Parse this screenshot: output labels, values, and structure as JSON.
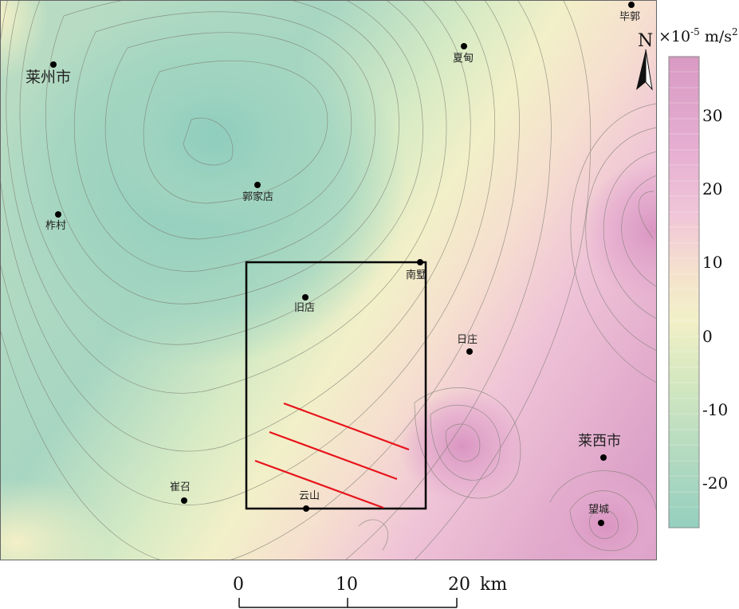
{
  "places": [
    {
      "id": "laizhou",
      "name": "莱州市",
      "major": true
    },
    {
      "id": "zhacun",
      "name": "柞村",
      "major": false
    },
    {
      "id": "guojiadian",
      "name": "郭家店",
      "major": false
    },
    {
      "id": "xiahe",
      "name": "夏甸",
      "major": false
    },
    {
      "id": "biguo",
      "name": "毕郭",
      "major": false
    },
    {
      "id": "nanshu",
      "name": "南墅",
      "major": false
    },
    {
      "id": "jiudian",
      "name": "旧店",
      "major": false
    },
    {
      "id": "rizhuang",
      "name": "日庄",
      "major": false
    },
    {
      "id": "laixi",
      "name": "莱西市",
      "major": true
    },
    {
      "id": "cuizhao",
      "name": "崔召",
      "major": false
    },
    {
      "id": "yunshan",
      "name": "云山",
      "major": false
    },
    {
      "id": "wangcheng",
      "name": "望城",
      "major": false
    }
  ],
  "north_arrow": {
    "label": "N",
    "icon": "north-arrow-icon"
  },
  "legend": {
    "unit_prefix": "×10",
    "unit_exp": "-5",
    "unit_suffix": " m/s",
    "unit_sq": "2",
    "ticks": [
      "30",
      "20",
      "10",
      "0",
      "-10",
      "-20"
    ],
    "colors": [
      "#d99ac3",
      "#e6afd2",
      "#f0c6d8",
      "#f5e2cd",
      "#f2f0c7",
      "#d6e8c0",
      "#b5dbc0",
      "#94cfbf"
    ]
  },
  "scale_bar": {
    "labels": [
      "0",
      "10",
      "20"
    ],
    "unit": "km"
  },
  "colors": {
    "study_box": "#000000",
    "faults": "#e8141b",
    "contours": "#7d7d72"
  }
}
